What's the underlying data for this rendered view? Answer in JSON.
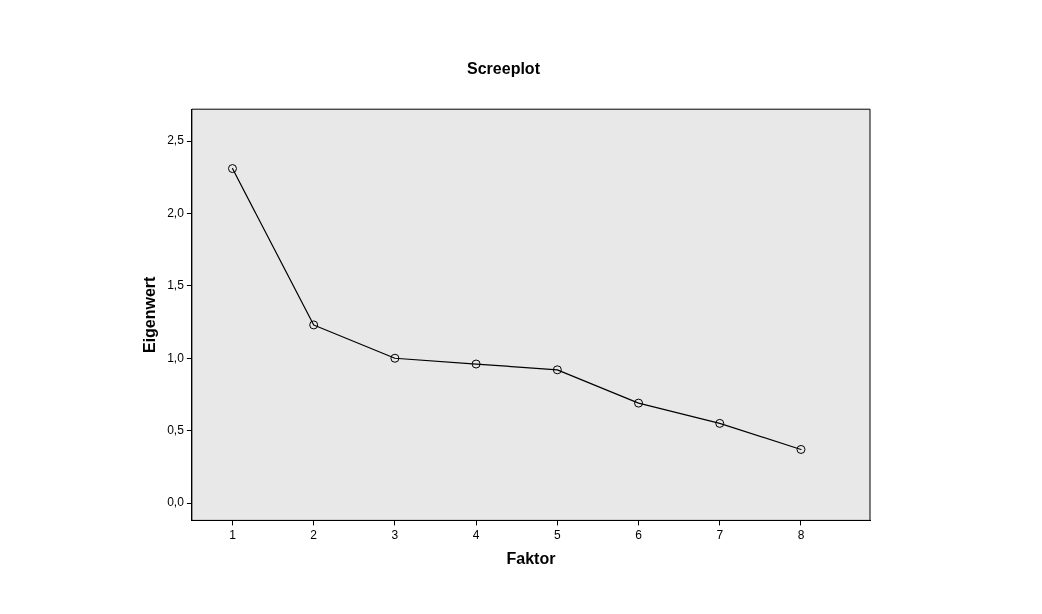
{
  "chart_data": {
    "type": "line",
    "title": "Screeplot",
    "xlabel": "Faktor",
    "ylabel": "Eigenwert",
    "x": [
      1,
      2,
      3,
      4,
      5,
      6,
      7,
      8
    ],
    "series": [
      {
        "color": "#000000",
        "values": [
          2.31,
          1.23,
          1.0,
          0.96,
          0.92,
          0.69,
          0.55,
          0.37
        ]
      }
    ],
    "xlim": [
      0.5,
      8.85
    ],
    "xticks": [
      1,
      2,
      3,
      4,
      5,
      6,
      7,
      8
    ],
    "ylim": [
      -0.12,
      2.72
    ],
    "yticks": [
      {
        "value": 0,
        "label": "0,0"
      },
      {
        "value": 0.5,
        "label": "0,5"
      },
      {
        "value": 1,
        "label": "1,0"
      },
      {
        "value": 1.5,
        "label": "1,5"
      },
      {
        "value": 2,
        "label": "2,0"
      },
      {
        "value": 2.5,
        "label": "2,5"
      }
    ],
    "grid": false,
    "legend": false,
    "marker": "circle",
    "line_style": "solid"
  }
}
